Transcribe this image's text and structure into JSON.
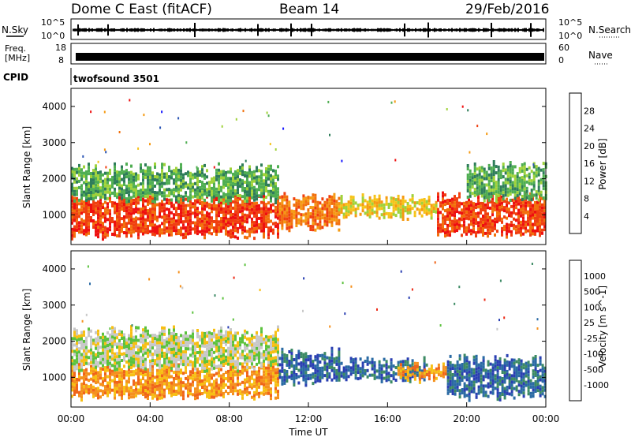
{
  "header": {
    "site": "Dome C East (fitACF)",
    "beam": "Beam 14",
    "date": "29/Feb/2016"
  },
  "strips": {
    "nsky_label": "N.Sky",
    "nsky_top": "10^5",
    "nsky_bottom": "10^0",
    "nsearch_label": "N.Search",
    "nsearch_top": "10^5",
    "nsearch_bottom": "10^0",
    "freq_label_1": "Freq.",
    "freq_label_2": "[MHz]",
    "freq_top": "18",
    "freq_bottom": "8",
    "nave_label": "Nave",
    "nave_top": "60",
    "nave_bottom": "0",
    "cpid_label": "CPID",
    "cpid_value": "twofsound 3501"
  },
  "axes": {
    "ylabel": "Slant Range [km]",
    "xlabel": "Time UT",
    "yticks": [
      "1000",
      "2000",
      "3000",
      "4000"
    ],
    "xticks": [
      "00:00",
      "04:00",
      "08:00",
      "12:00",
      "16:00",
      "20:00",
      "00:00"
    ]
  },
  "colorbars": {
    "power": {
      "label": "Power [dB]",
      "ticks": [
        "4",
        "8",
        "12",
        "16",
        "20",
        "24",
        "28"
      ],
      "colors": [
        "#1818ff",
        "#2a54b4",
        "#2f7d5a",
        "#4fae52",
        "#9fd23a",
        "#f6c318",
        "#f59a12",
        "#f2700c",
        "#f04010",
        "#ee1010"
      ]
    },
    "velocity": {
      "label": "Velocity [m s^-1]",
      "ticks": [
        "1000",
        "500",
        "100",
        "25",
        "-25",
        "-100",
        "-500",
        "-1000"
      ],
      "colors": [
        "#2a3fb2",
        "#2a6aa4",
        "#3c8a64",
        "#5cc23e",
        "#c8c8c8",
        "#f7bf14",
        "#f5911e",
        "#f0651a",
        "#ec2a16"
      ]
    }
  },
  "chart_data": [
    {
      "type": "heatmap",
      "title": "Power",
      "ylabel": "Slant Range [km]",
      "xlabel": "Time UT",
      "ylim": [
        180,
        4500
      ],
      "xlim": [
        0,
        24
      ],
      "colorbar_label": "Power [dB]",
      "colorbar_range": [
        0,
        32
      ],
      "bands": [
        {
          "t": [
            0,
            10.5
          ],
          "range": [
            450,
            1450
          ],
          "value": 28
        },
        {
          "t": [
            0,
            10.5
          ],
          "range": [
            1450,
            2300
          ],
          "value": 12
        },
        {
          "t": [
            10.5,
            13.5
          ],
          "range": [
            700,
            1500
          ],
          "value": 26
        },
        {
          "t": [
            13.5,
            18.5
          ],
          "range": [
            1000,
            1450
          ],
          "value": 18
        },
        {
          "t": [
            18.5,
            24
          ],
          "range": [
            500,
            1500
          ],
          "value": 27
        },
        {
          "t": [
            20,
            24
          ],
          "range": [
            1500,
            2400
          ],
          "value": 10
        }
      ]
    },
    {
      "type": "heatmap",
      "title": "Velocity",
      "ylabel": "Slant Range [km]",
      "xlabel": "Time UT",
      "ylim": [
        180,
        4500
      ],
      "xlim": [
        0,
        24
      ],
      "colorbar_label": "Velocity [m s^-1]",
      "colorbar_range": [
        -1000,
        1000
      ],
      "bands": [
        {
          "t": [
            0,
            10.5
          ],
          "range": [
            500,
            1300
          ],
          "value": -300
        },
        {
          "t": [
            0,
            10.5
          ],
          "range": [
            1300,
            2300
          ],
          "value": 0
        },
        {
          "t": [
            10.5,
            13.5
          ],
          "range": [
            900,
            1700
          ],
          "value": 150
        },
        {
          "t": [
            13.5,
            18
          ],
          "range": [
            1000,
            1450
          ],
          "value": 150
        },
        {
          "t": [
            16.5,
            19
          ],
          "range": [
            1000,
            1300
          ],
          "value": -300
        },
        {
          "t": [
            19,
            24
          ],
          "range": [
            500,
            1500
          ],
          "value": 180
        }
      ]
    }
  ]
}
